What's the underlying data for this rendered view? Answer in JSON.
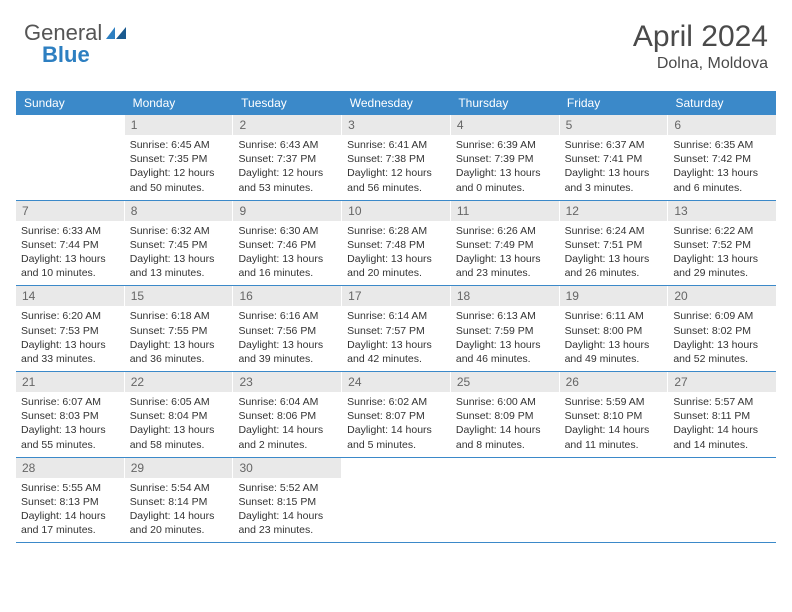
{
  "logo": {
    "text1": "General",
    "text2": "Blue"
  },
  "title": "April 2024",
  "location": "Dolna, Moldova",
  "colors": {
    "header_bg": "#3b89c9",
    "header_text": "#ffffff",
    "daynum_bg": "#e9e9e9",
    "daynum_text": "#666666",
    "week_border": "#3b89c9",
    "body_text": "#333333",
    "logo_blue": "#2d7fc1",
    "logo_gray": "#555555"
  },
  "typography": {
    "title_fontsize": 30,
    "location_fontsize": 16,
    "weekday_fontsize": 12,
    "daynum_fontsize": 12,
    "content_fontsize": 10.5
  },
  "weekdays": [
    "Sunday",
    "Monday",
    "Tuesday",
    "Wednesday",
    "Thursday",
    "Friday",
    "Saturday"
  ],
  "weeks": [
    [
      null,
      {
        "n": "1",
        "sunrise": "6:45 AM",
        "sunset": "7:35 PM",
        "daylight": "12 hours and 50 minutes."
      },
      {
        "n": "2",
        "sunrise": "6:43 AM",
        "sunset": "7:37 PM",
        "daylight": "12 hours and 53 minutes."
      },
      {
        "n": "3",
        "sunrise": "6:41 AM",
        "sunset": "7:38 PM",
        "daylight": "12 hours and 56 minutes."
      },
      {
        "n": "4",
        "sunrise": "6:39 AM",
        "sunset": "7:39 PM",
        "daylight": "13 hours and 0 minutes."
      },
      {
        "n": "5",
        "sunrise": "6:37 AM",
        "sunset": "7:41 PM",
        "daylight": "13 hours and 3 minutes."
      },
      {
        "n": "6",
        "sunrise": "6:35 AM",
        "sunset": "7:42 PM",
        "daylight": "13 hours and 6 minutes."
      }
    ],
    [
      {
        "n": "7",
        "sunrise": "6:33 AM",
        "sunset": "7:44 PM",
        "daylight": "13 hours and 10 minutes."
      },
      {
        "n": "8",
        "sunrise": "6:32 AM",
        "sunset": "7:45 PM",
        "daylight": "13 hours and 13 minutes."
      },
      {
        "n": "9",
        "sunrise": "6:30 AM",
        "sunset": "7:46 PM",
        "daylight": "13 hours and 16 minutes."
      },
      {
        "n": "10",
        "sunrise": "6:28 AM",
        "sunset": "7:48 PM",
        "daylight": "13 hours and 20 minutes."
      },
      {
        "n": "11",
        "sunrise": "6:26 AM",
        "sunset": "7:49 PM",
        "daylight": "13 hours and 23 minutes."
      },
      {
        "n": "12",
        "sunrise": "6:24 AM",
        "sunset": "7:51 PM",
        "daylight": "13 hours and 26 minutes."
      },
      {
        "n": "13",
        "sunrise": "6:22 AM",
        "sunset": "7:52 PM",
        "daylight": "13 hours and 29 minutes."
      }
    ],
    [
      {
        "n": "14",
        "sunrise": "6:20 AM",
        "sunset": "7:53 PM",
        "daylight": "13 hours and 33 minutes."
      },
      {
        "n": "15",
        "sunrise": "6:18 AM",
        "sunset": "7:55 PM",
        "daylight": "13 hours and 36 minutes."
      },
      {
        "n": "16",
        "sunrise": "6:16 AM",
        "sunset": "7:56 PM",
        "daylight": "13 hours and 39 minutes."
      },
      {
        "n": "17",
        "sunrise": "6:14 AM",
        "sunset": "7:57 PM",
        "daylight": "13 hours and 42 minutes."
      },
      {
        "n": "18",
        "sunrise": "6:13 AM",
        "sunset": "7:59 PM",
        "daylight": "13 hours and 46 minutes."
      },
      {
        "n": "19",
        "sunrise": "6:11 AM",
        "sunset": "8:00 PM",
        "daylight": "13 hours and 49 minutes."
      },
      {
        "n": "20",
        "sunrise": "6:09 AM",
        "sunset": "8:02 PM",
        "daylight": "13 hours and 52 minutes."
      }
    ],
    [
      {
        "n": "21",
        "sunrise": "6:07 AM",
        "sunset": "8:03 PM",
        "daylight": "13 hours and 55 minutes."
      },
      {
        "n": "22",
        "sunrise": "6:05 AM",
        "sunset": "8:04 PM",
        "daylight": "13 hours and 58 minutes."
      },
      {
        "n": "23",
        "sunrise": "6:04 AM",
        "sunset": "8:06 PM",
        "daylight": "14 hours and 2 minutes."
      },
      {
        "n": "24",
        "sunrise": "6:02 AM",
        "sunset": "8:07 PM",
        "daylight": "14 hours and 5 minutes."
      },
      {
        "n": "25",
        "sunrise": "6:00 AM",
        "sunset": "8:09 PM",
        "daylight": "14 hours and 8 minutes."
      },
      {
        "n": "26",
        "sunrise": "5:59 AM",
        "sunset": "8:10 PM",
        "daylight": "14 hours and 11 minutes."
      },
      {
        "n": "27",
        "sunrise": "5:57 AM",
        "sunset": "8:11 PM",
        "daylight": "14 hours and 14 minutes."
      }
    ],
    [
      {
        "n": "28",
        "sunrise": "5:55 AM",
        "sunset": "8:13 PM",
        "daylight": "14 hours and 17 minutes."
      },
      {
        "n": "29",
        "sunrise": "5:54 AM",
        "sunset": "8:14 PM",
        "daylight": "14 hours and 20 minutes."
      },
      {
        "n": "30",
        "sunrise": "5:52 AM",
        "sunset": "8:15 PM",
        "daylight": "14 hours and 23 minutes."
      },
      null,
      null,
      null,
      null
    ]
  ],
  "labels": {
    "sunrise": "Sunrise:",
    "sunset": "Sunset:",
    "daylight": "Daylight:"
  }
}
